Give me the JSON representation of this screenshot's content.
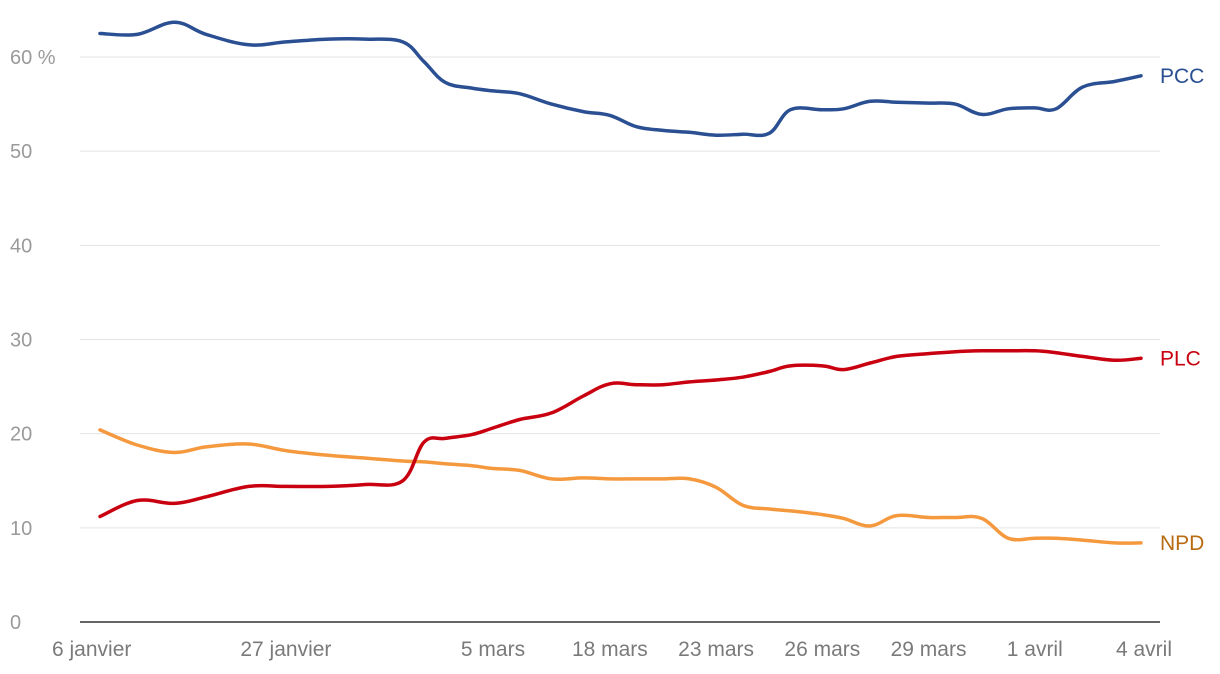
{
  "chart_data": {
    "type": "line",
    "title": "",
    "xlabel": "",
    "ylabel": "",
    "ylim": [
      0,
      60
    ],
    "y_ticks": [
      0,
      10,
      20,
      30,
      40,
      50,
      60
    ],
    "y_tick_labels": [
      "0",
      "10",
      "20",
      "30",
      "40",
      "50",
      "60 %"
    ],
    "x_tick_labels": [
      "6 janvier",
      "27 janvier",
      "5 mars",
      "18 mars",
      "23 mars",
      "26 mars",
      "29 mars",
      "1 avril",
      "4 avril"
    ],
    "x_tick_positions": [
      0,
      3.5,
      7.4,
      9.6,
      11.6,
      13.6,
      15.6,
      17.6,
      19.6
    ],
    "x_range": [
      0,
      19.6
    ],
    "series": [
      {
        "name": "PCC",
        "color": "#2a4f92",
        "label_color": "#2a4f92",
        "x": [
          0,
          0.7,
          1.4,
          2.0,
          2.8,
          3.5,
          4.3,
          5.0,
          5.7,
          6.1,
          6.5,
          7.0,
          7.4,
          7.9,
          8.5,
          9.1,
          9.6,
          10.1,
          10.6,
          11.1,
          11.6,
          12.1,
          12.6,
          13.0,
          13.6,
          14.0,
          14.5,
          15.0,
          15.6,
          16.1,
          16.6,
          17.1,
          17.6,
          18.0,
          18.5,
          19.1,
          19.6
        ],
        "values": [
          62.5,
          62.4,
          63.7,
          62.4,
          61.3,
          61.6,
          61.9,
          61.9,
          61.6,
          59.5,
          57.3,
          56.7,
          56.4,
          56.1,
          55.0,
          54.2,
          53.8,
          52.6,
          52.2,
          52.0,
          51.7,
          51.8,
          51.9,
          54.4,
          54.4,
          54.5,
          55.3,
          55.2,
          55.1,
          55.0,
          53.9,
          54.5,
          54.6,
          54.5,
          56.8,
          57.4,
          58.0
        ]
      },
      {
        "name": "PLC",
        "color": "#c9000f",
        "label_color": "#c9000f",
        "x": [
          0,
          0.7,
          1.4,
          2.0,
          2.8,
          3.5,
          4.3,
          5.0,
          5.7,
          6.1,
          6.5,
          7.0,
          7.4,
          7.9,
          8.5,
          9.1,
          9.6,
          10.1,
          10.6,
          11.1,
          11.6,
          12.1,
          12.6,
          13.0,
          13.6,
          14.0,
          14.5,
          15.0,
          15.6,
          16.1,
          16.6,
          17.1,
          17.6,
          18.0,
          18.5,
          19.1,
          19.6
        ],
        "values": [
          11.2,
          12.9,
          12.6,
          13.3,
          14.4,
          14.4,
          14.4,
          14.6,
          15.0,
          19.1,
          19.5,
          19.9,
          20.6,
          21.5,
          22.2,
          24.0,
          25.3,
          25.2,
          25.2,
          25.5,
          25.7,
          26.0,
          26.6,
          27.2,
          27.2,
          26.8,
          27.5,
          28.2,
          28.5,
          28.7,
          28.8,
          28.8,
          28.8,
          28.6,
          28.2,
          27.8,
          28.0
        ]
      },
      {
        "name": "NPD",
        "color": "#f5993e",
        "label_color": "#b86b10",
        "x": [
          0,
          0.7,
          1.4,
          2.0,
          2.8,
          3.5,
          4.3,
          5.0,
          5.7,
          6.1,
          6.5,
          7.0,
          7.4,
          7.9,
          8.5,
          9.1,
          9.6,
          10.1,
          10.6,
          11.1,
          11.6,
          12.1,
          12.6,
          13.0,
          13.6,
          14.0,
          14.5,
          15.0,
          15.6,
          16.1,
          16.6,
          17.1,
          17.6,
          18.0,
          18.5,
          19.1,
          19.6
        ],
        "values": [
          20.4,
          18.8,
          18.0,
          18.6,
          18.9,
          18.2,
          17.7,
          17.4,
          17.1,
          17.0,
          16.8,
          16.6,
          16.3,
          16.1,
          15.2,
          15.3,
          15.2,
          15.2,
          15.2,
          15.2,
          14.3,
          12.4,
          12.0,
          11.8,
          11.4,
          11.0,
          10.2,
          11.3,
          11.1,
          11.1,
          11.0,
          8.9,
          8.9,
          8.9,
          8.7,
          8.4,
          8.4
        ]
      }
    ]
  }
}
